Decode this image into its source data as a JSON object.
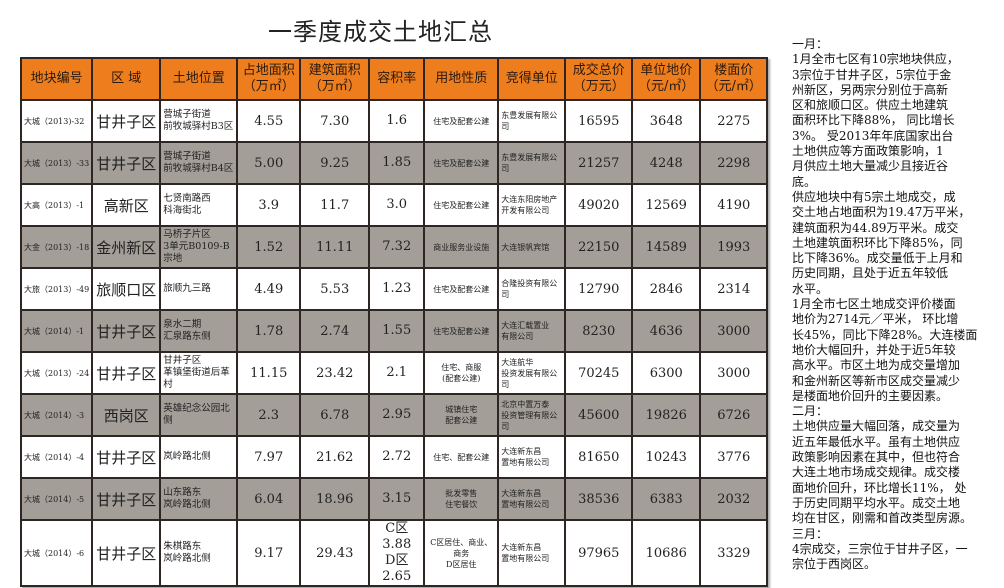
{
  "title": "一季度成交土地汇总",
  "colors": {
    "header_bg": "#ee7d1d",
    "alt_row_bg": "#a39e98",
    "border": "#2e2622"
  },
  "headers": [
    "地块编号",
    "区 域",
    "土地位置",
    "占地面积\n（万㎡）",
    "建筑面积\n（万㎡）",
    "容积率",
    "用地性质",
    "竞得单位",
    "成交总价\n（万元）",
    "单位地价\n（元/㎡）",
    "楼面价\n（元/㎡）"
  ],
  "rows": [
    {
      "id": "大城（2013)-32",
      "district": "甘井子区",
      "location": "营城子街道\n前牧城驿村B3区",
      "land_area": "4.55",
      "build_area": "7.30",
      "far": "1.6",
      "use": "住宅及配套公建",
      "winner": "东豊发展有限公司",
      "total": "16595",
      "unit_price": "3648",
      "floor_price": "2275"
    },
    {
      "id": "大城（2013）-33",
      "district": "甘井子区",
      "location": "营城子街道\n前牧城驿村B4区",
      "land_area": "5.00",
      "build_area": "9.25",
      "far": "1.85",
      "use": "住宅及配套公建",
      "winner": "东豊发展有限公司",
      "total": "21257",
      "unit_price": "4248",
      "floor_price": "2298"
    },
    {
      "id": "大高（2013）-1",
      "district": "高新区",
      "location": "七贤南路西\n科海街北",
      "land_area": "3.9",
      "build_area": "11.7",
      "far": "3.0",
      "use": "住宅及配套公建",
      "winner": "大连东阳房地产\n开发有限公司",
      "total": "49020",
      "unit_price": "12569",
      "floor_price": "4190"
    },
    {
      "id": "大金（2013）-18",
      "district": "金州新区",
      "location": "马桥子片区\n3单元B0109-B宗地",
      "land_area": "1.52",
      "build_area": "11.11",
      "far": "7.32",
      "use": "商业服务业设施",
      "winner": "大连银帆宾馆",
      "total": "22150",
      "unit_price": "14589",
      "floor_price": "1993"
    },
    {
      "id": "大旅（2013）-49",
      "district": "旅顺口区",
      "location": "旅顺九三路",
      "land_area": "4.49",
      "build_area": "5.53",
      "far": "1.23",
      "use": "住宅及配套公建",
      "winner": "合隆投资有限公司",
      "total": "12790",
      "unit_price": "2846",
      "floor_price": "2314"
    },
    {
      "id": "大城（2014）-1",
      "district": "甘井子区",
      "location": "泉水二期\n汇泉路东侧",
      "land_area": "1.78",
      "build_area": "2.74",
      "far": "1.55",
      "use": "住宅及配套公建",
      "winner": "大连汇载置业\n有限公司",
      "total": "8230",
      "unit_price": "4636",
      "floor_price": "3000"
    },
    {
      "id": "大城（2013）-24",
      "district": "甘井子区",
      "location": "甘井子区\n革镇堡街道后革村",
      "land_area": "11.15",
      "build_area": "23.42",
      "far": "2.1",
      "use": "住宅、商服\n(配套公建)",
      "winner": "大连航华\n投资发展有限公司",
      "total": "70245",
      "unit_price": "6300",
      "floor_price": "3000"
    },
    {
      "id": "大城（2014）-3",
      "district": "西岗区",
      "location": "英雄纪念公园北侧",
      "land_area": "2.3",
      "build_area": "6.78",
      "far": "2.95",
      "use": "城镇住宅\n配套公建",
      "winner": "北京中置万泰\n投资管理有限公司",
      "total": "45600",
      "unit_price": "19826",
      "floor_price": "6726"
    },
    {
      "id": "大城（2014）-4",
      "district": "甘井子区",
      "location": "岚岭路北侧",
      "land_area": "7.97",
      "build_area": "21.62",
      "far": "2.72",
      "use": "住宅、配套公建",
      "winner": "大连新东昌\n置地有限公司",
      "total": "81650",
      "unit_price": "10243",
      "floor_price": "3776"
    },
    {
      "id": "大城（2014）-5",
      "district": "甘井子区",
      "location": "山东路东\n岚岭路北侧",
      "land_area": "6.04",
      "build_area": "18.96",
      "far": "3.15",
      "use": "批发零售\n住宅餐饮",
      "winner": "大连新东昌\n置地有限公司",
      "total": "38536",
      "unit_price": "6383",
      "floor_price": "2032"
    },
    {
      "id": "大城（2014）-6",
      "district": "甘井子区",
      "location": "朱棋路东\n岚岭路北侧",
      "land_area": "9.17",
      "build_area": "29.43",
      "far": "C区3.88\nD区2.65",
      "use": "C区居住、商业、商务\nD区居住",
      "winner": "大连新东昌\n置地有限公司",
      "total": "97965",
      "unit_price": "10686",
      "floor_price": "3329"
    }
  ],
  "side_lines": [
    "一月：",
    "1月全市七区有10宗地块供应，",
    "3宗位于甘井子区，5宗位于金",
    "州新区，另两宗分别位于高新",
    "区和旅顺口区。供应土地建筑",
    "面积环比下降88%， 同比增长",
    "3%。  受2013年年底国家出台",
    "土地供应等方面政策影响，1",
    "月供应土地大量减少且接近谷",
    "底。",
    "供应地块中有5宗土地成交，成",
    "交土地占地面积为19.47万平米，",
    "建筑面积为44.89万平米。成交",
    "土地建筑面积环比下降85%，同",
    "比下降36%。成交量低于上月和",
    "历史同期，且处于近五年较低",
    "水平。",
    "1月全市七区土地成交评价楼面",
    "地价为2714元／平米， 环比增",
    "长45%，同比下降28%。大连楼面",
    "地价大幅回升，并处于近5年较",
    "高水平。市区土地为成交量增加",
    "和金州新区等新市区成交量减少",
    "是楼面地价回升的主要因素。",
    "二月：",
    "土地供应量大幅回落，成交量为",
    "近五年最低水平。虽有土地供应",
    "政策影响因素在其中，但也符合",
    "大连土地市场成交规律。成交楼",
    "面地价回升，环比增长11%， 处",
    "于历史同期平均水平。成交土地",
    "均在甘区，刚需和首改类型房源。",
    "三月：",
    "4宗成交，三宗位于甘井子区，一",
    "宗位于西岗区。"
  ]
}
